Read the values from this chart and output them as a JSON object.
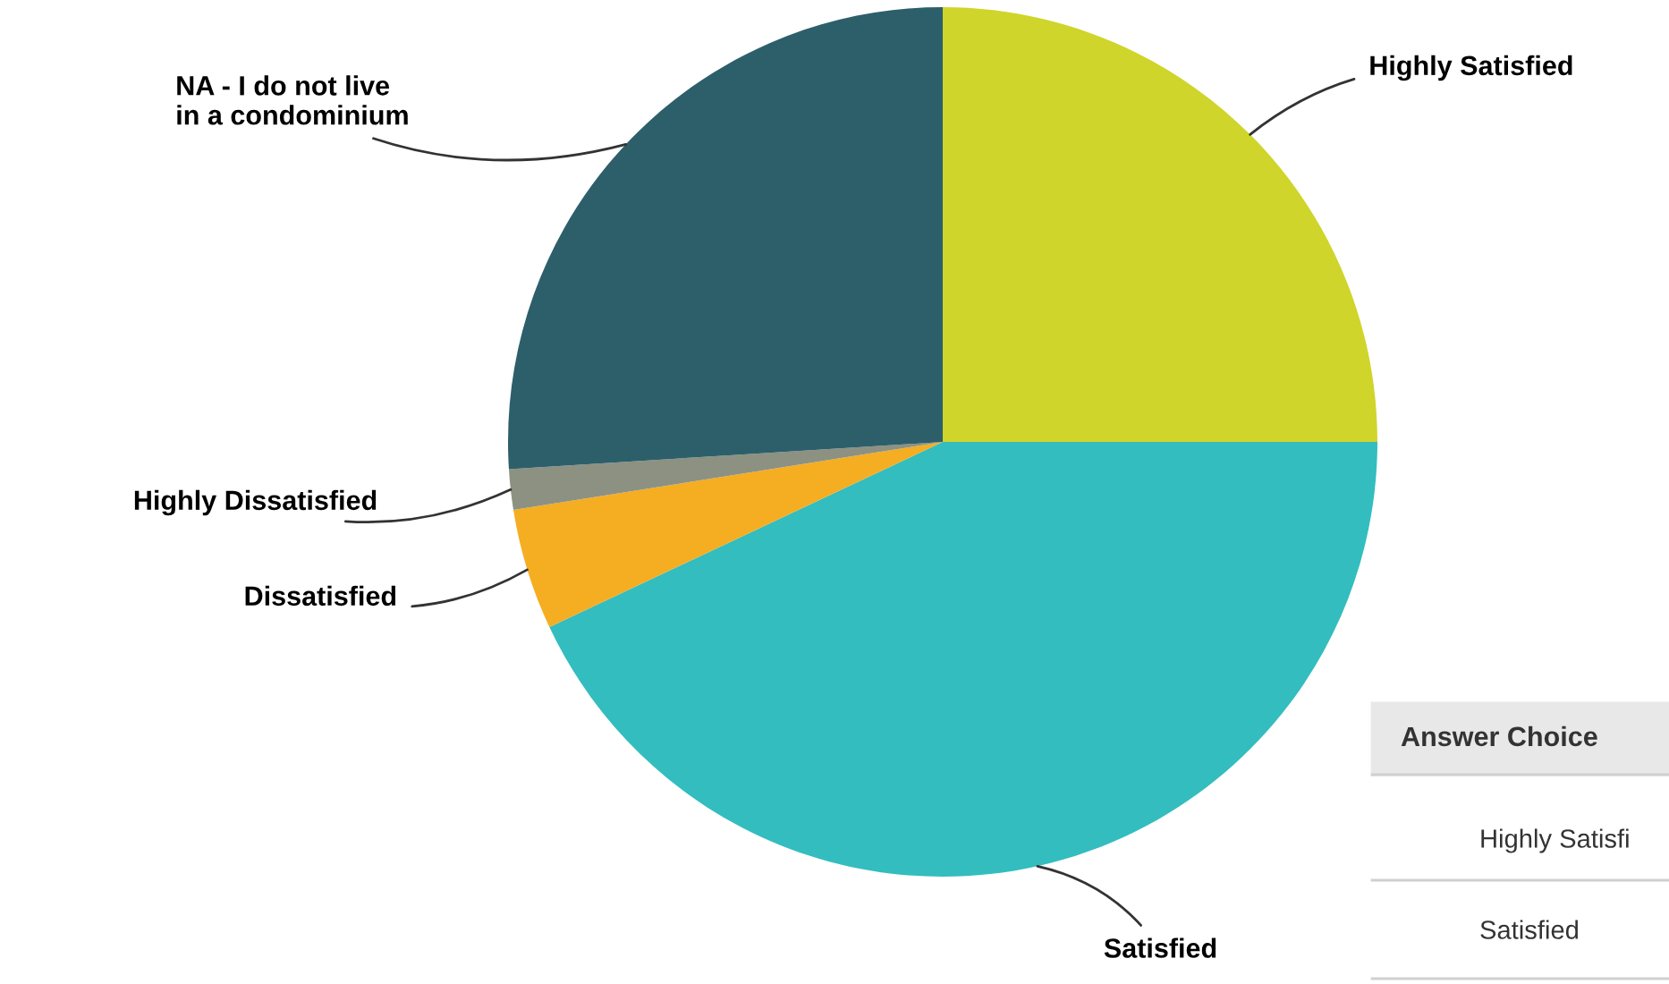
{
  "chart_data": {
    "type": "pie",
    "categories": [
      "Highly Satisfied",
      "Satisfied",
      "Dissatisfied",
      "Highly Dissatisfied",
      "NA - I do not live\nin a condominium"
    ],
    "values": [
      25,
      43,
      4.5,
      1.5,
      26
    ],
    "colors": [
      "#cfd52a",
      "#33bdbf",
      "#f5ad22",
      "#8d9182",
      "#2d5f6b"
    ],
    "annotations": [
      "Answer Choice",
      "Highly Satisfi",
      "Satisfied"
    ]
  }
}
